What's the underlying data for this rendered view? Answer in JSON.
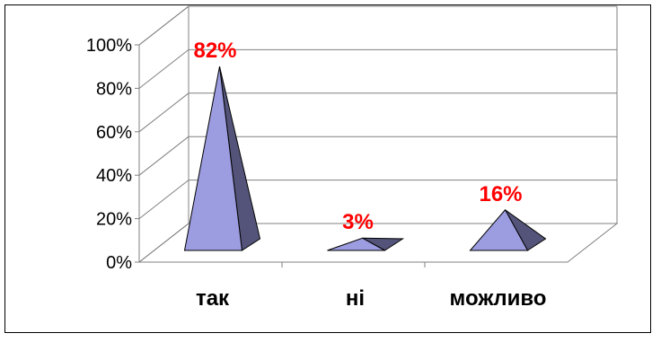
{
  "chart_data": {
    "type": "bar",
    "bar_shape": "3d-pyramid",
    "categories": [
      "так",
      "ні",
      "можливо"
    ],
    "values": [
      82,
      3,
      16
    ],
    "data_labels": [
      "82%",
      "3%",
      "16%"
    ],
    "title": "",
    "xlabel": "",
    "ylabel": "",
    "ylim": [
      0,
      100
    ],
    "yticks": [
      "0%",
      "20%",
      "40%",
      "60%",
      "80%",
      "100%"
    ],
    "grid": true,
    "legend": "none",
    "colors": {
      "face_light": "#9C9CE0",
      "face_dark": "#54547A",
      "data_label": "#FF0000",
      "axis": "#808080"
    }
  }
}
